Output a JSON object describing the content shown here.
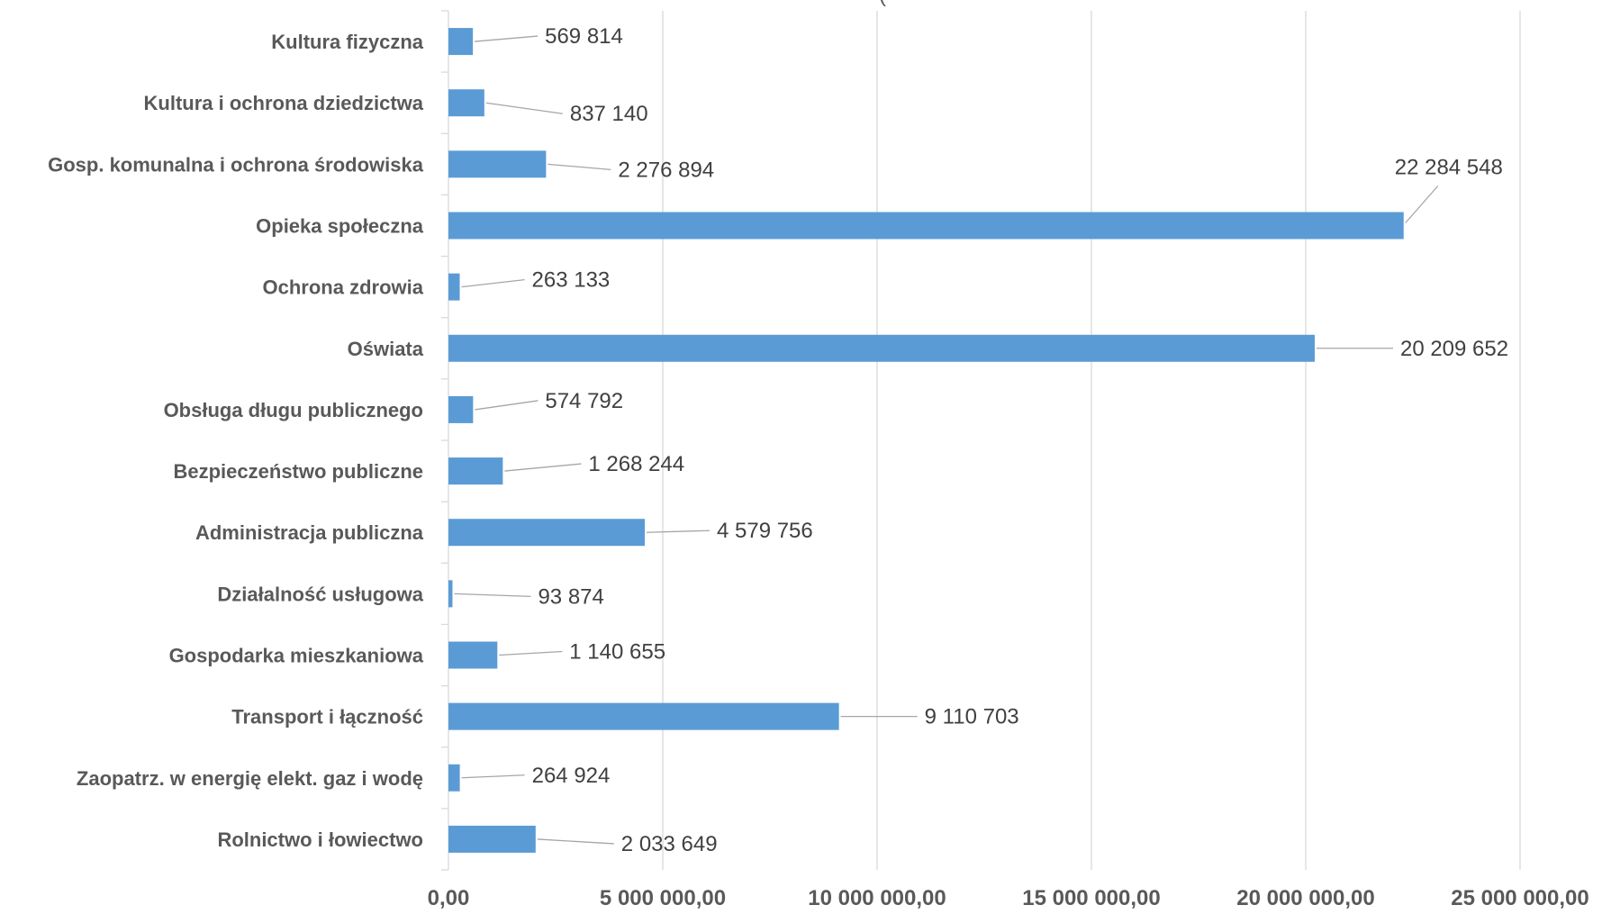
{
  "chart_data": {
    "type": "bar",
    "orientation": "horizontal",
    "title": "",
    "xlabel": "",
    "ylabel": "",
    "xlim": [
      0,
      25000000
    ],
    "grid": true,
    "bar_color": "#5B9BD5",
    "categories": [
      "Kultura fizyczna",
      "Kultura i ochrona dziedzictwa",
      "Gosp. komunalna i ochrona środowiska",
      "Opieka społeczna",
      "Ochrona zdrowia",
      "Oświata",
      "Obsługa długu publicznego",
      "Bezpieczeństwo publiczne",
      "Administracja publiczna",
      "Działalność usługowa",
      "Gospodarka mieszkaniowa",
      "Transport i łączność",
      "Zaopatrz. w energię elekt. gaz i wodę",
      "Rolnictwo i łowiectwo"
    ],
    "values": [
      569814,
      837140,
      2276894,
      22284548,
      263133,
      20209652,
      574792,
      1268244,
      4579756,
      93874,
      1140655,
      9110703,
      264924,
      2033649
    ],
    "data_labels": [
      "569 814",
      "837 140",
      "2 276 894",
      "22 284 548",
      "263 133",
      "20 209 652",
      "574 792",
      "1 268 244",
      "4 579 756",
      "93 874",
      "1 140 655",
      "9 110 703",
      "264 924",
      "2 033 649"
    ],
    "ticks": [
      0,
      5000000,
      10000000,
      15000000,
      20000000,
      25000000
    ],
    "tick_labels": [
      "0,00",
      "5 000 000,00",
      "10 000 000,00",
      "15 000 000,00",
      "20 000 000,00",
      "25 000 000,00"
    ]
  }
}
